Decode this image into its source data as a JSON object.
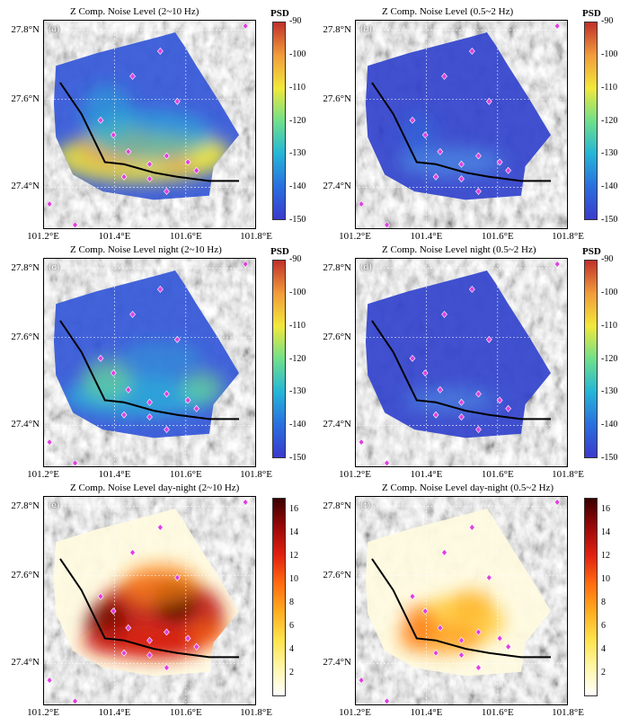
{
  "panels": [
    {
      "label": "(a)",
      "title": "Z  Comp. Noise Level (2~10 Hz)",
      "scale": "psd",
      "pattern": "a"
    },
    {
      "label": "(b)",
      "title": "Z  Comp. Noise Level (0.5~2 Hz)",
      "scale": "psd",
      "pattern": "b"
    },
    {
      "label": "(c)",
      "title": "Z  Comp. Noise Level night (2~10 Hz)",
      "scale": "psd",
      "pattern": "c"
    },
    {
      "label": "(d)",
      "title": "Z  Comp. Noise Level night (0.5~2 Hz)",
      "scale": "psd",
      "pattern": "d"
    },
    {
      "label": "(e)",
      "title": "Z  Comp. Noise Level day-night (2~10 Hz)",
      "scale": "diff",
      "pattern": "e"
    },
    {
      "label": "(f)",
      "title": "Z  Comp. Noise Level day-night (0.5~2 Hz)",
      "scale": "diff",
      "pattern": "f"
    }
  ],
  "lat_labels": [
    "27.8°N",
    "27.6°N",
    "27.4°N"
  ],
  "lon_labels": [
    "101.2°E",
    "101.4°E",
    "101.6°E",
    "101.8°E"
  ],
  "psd_colorbar": {
    "title": "PSD",
    "ticks": [
      "-90",
      "-100",
      "-110",
      "-120",
      "-130",
      "-140",
      "-150"
    ],
    "range": [
      -150,
      -90
    ],
    "colors": [
      "#3a3acc",
      "#2a6fdf",
      "#25b5d8",
      "#6fe08a",
      "#f2e83a",
      "#f29b3a",
      "#c0302a"
    ]
  },
  "diff_colorbar": {
    "ticks": [
      "16",
      "14",
      "12",
      "10",
      "8",
      "6",
      "4",
      "2"
    ],
    "range": [
      0,
      17
    ],
    "colors": [
      "#ffffff",
      "#fff6a8",
      "#ffe24a",
      "#ffac20",
      "#ff6a10",
      "#e02010",
      "#9a0808",
      "#3a0000"
    ]
  },
  "colors": {
    "fault_line": "#000000",
    "station_marker": "#e040e0",
    "grid": "#ffffff"
  }
}
